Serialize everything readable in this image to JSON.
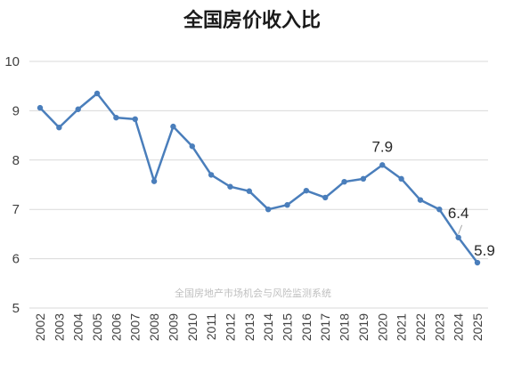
{
  "chart_data": {
    "type": "line",
    "title": "全国房价收入比",
    "xlabel": "",
    "ylabel": "",
    "categories": [
      "2002",
      "2003",
      "2004",
      "2005",
      "2006",
      "2007",
      "2008",
      "2009",
      "2010",
      "2011",
      "2012",
      "2013",
      "2014",
      "2015",
      "2016",
      "2017",
      "2018",
      "2019",
      "2020",
      "2021",
      "2022",
      "2023",
      "2024",
      "2025"
    ],
    "series": [
      {
        "values": [
          9.06,
          8.66,
          9.03,
          9.35,
          8.86,
          8.83,
          7.57,
          8.68,
          8.28,
          7.7,
          7.46,
          7.37,
          7.0,
          7.09,
          7.38,
          7.24,
          7.56,
          7.62,
          7.9,
          7.62,
          7.19,
          7.0,
          6.43,
          5.92
        ],
        "color": "#4a7ebb"
      }
    ],
    "ylim": [
      5,
      10
    ],
    "yticks": [
      "5",
      "6",
      "7",
      "8",
      "9",
      "10"
    ],
    "grid": true,
    "legend": "none",
    "data_labels": [
      {
        "category": "2020",
        "text": "7.9"
      },
      {
        "category": "2024",
        "text": "6.4"
      },
      {
        "category": "2025",
        "text": "5.9"
      }
    ],
    "watermark": "全国房地产市场机会与风险监测系统"
  }
}
